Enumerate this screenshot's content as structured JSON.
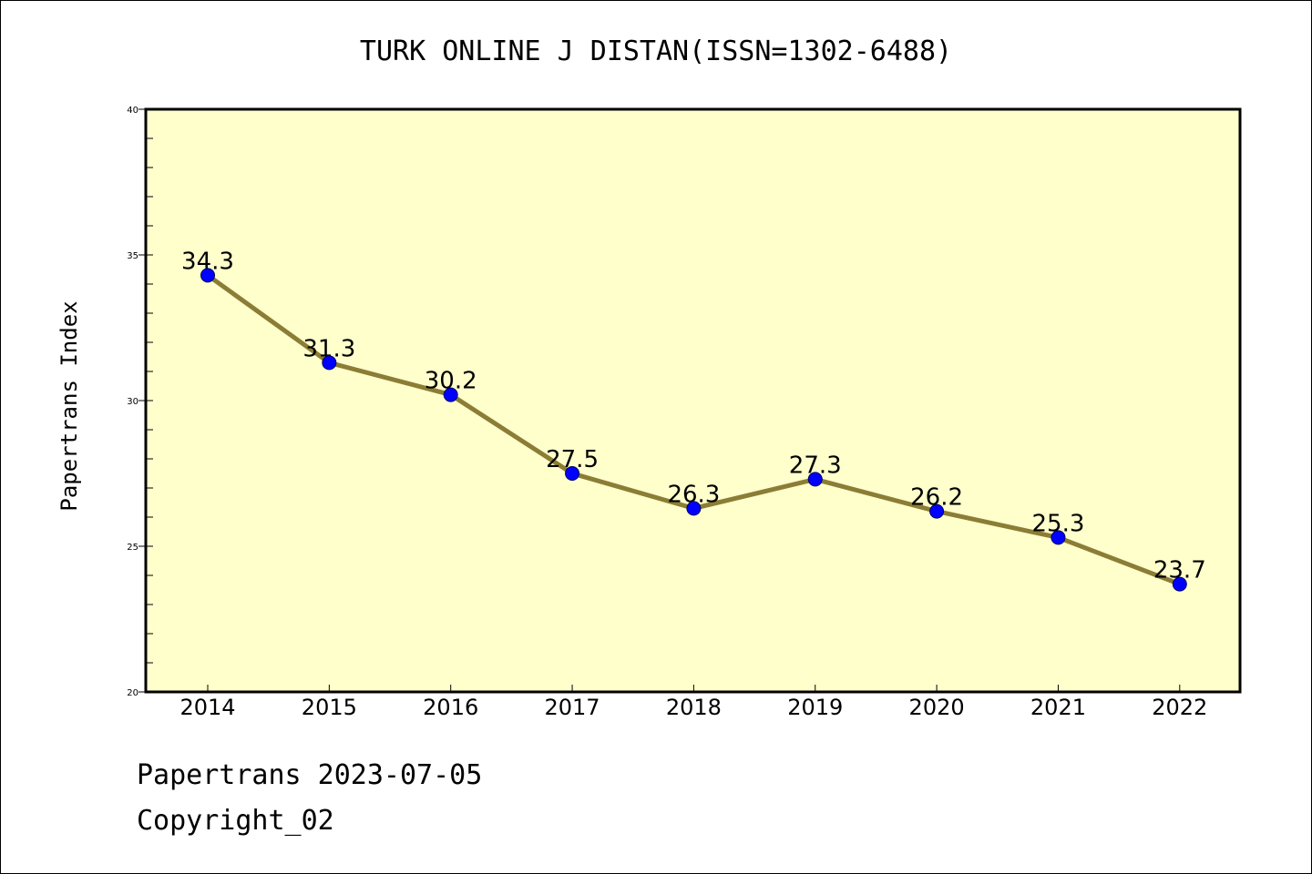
{
  "colors": {
    "plot_background": "#ffffcc",
    "line": "#8b7d35",
    "marker": "#0000ff",
    "axis": "#000000"
  },
  "chart_data": {
    "type": "line",
    "title": "TURK ONLINE J DISTAN(ISSN=1302-6488)",
    "xlabel": "",
    "ylabel": "Papertrans Index",
    "categories": [
      "2014",
      "2015",
      "2016",
      "2017",
      "2018",
      "2019",
      "2020",
      "2021",
      "2022"
    ],
    "values": [
      34.3,
      31.3,
      30.2,
      27.5,
      26.3,
      27.3,
      26.2,
      25.3,
      23.7
    ],
    "data_labels": [
      "34.3",
      "31.3",
      "30.2",
      "27.5",
      "26.3",
      "27.3",
      "26.2",
      "25.3",
      "23.7"
    ],
    "ylim": [
      20,
      40
    ],
    "yticks": [
      "20",
      "25",
      "30",
      "35",
      "40"
    ],
    "grid": false,
    "legend": "none"
  },
  "footer": {
    "date_line": "Papertrans 2023-07-05",
    "copyright_line": "Copyright_02"
  }
}
